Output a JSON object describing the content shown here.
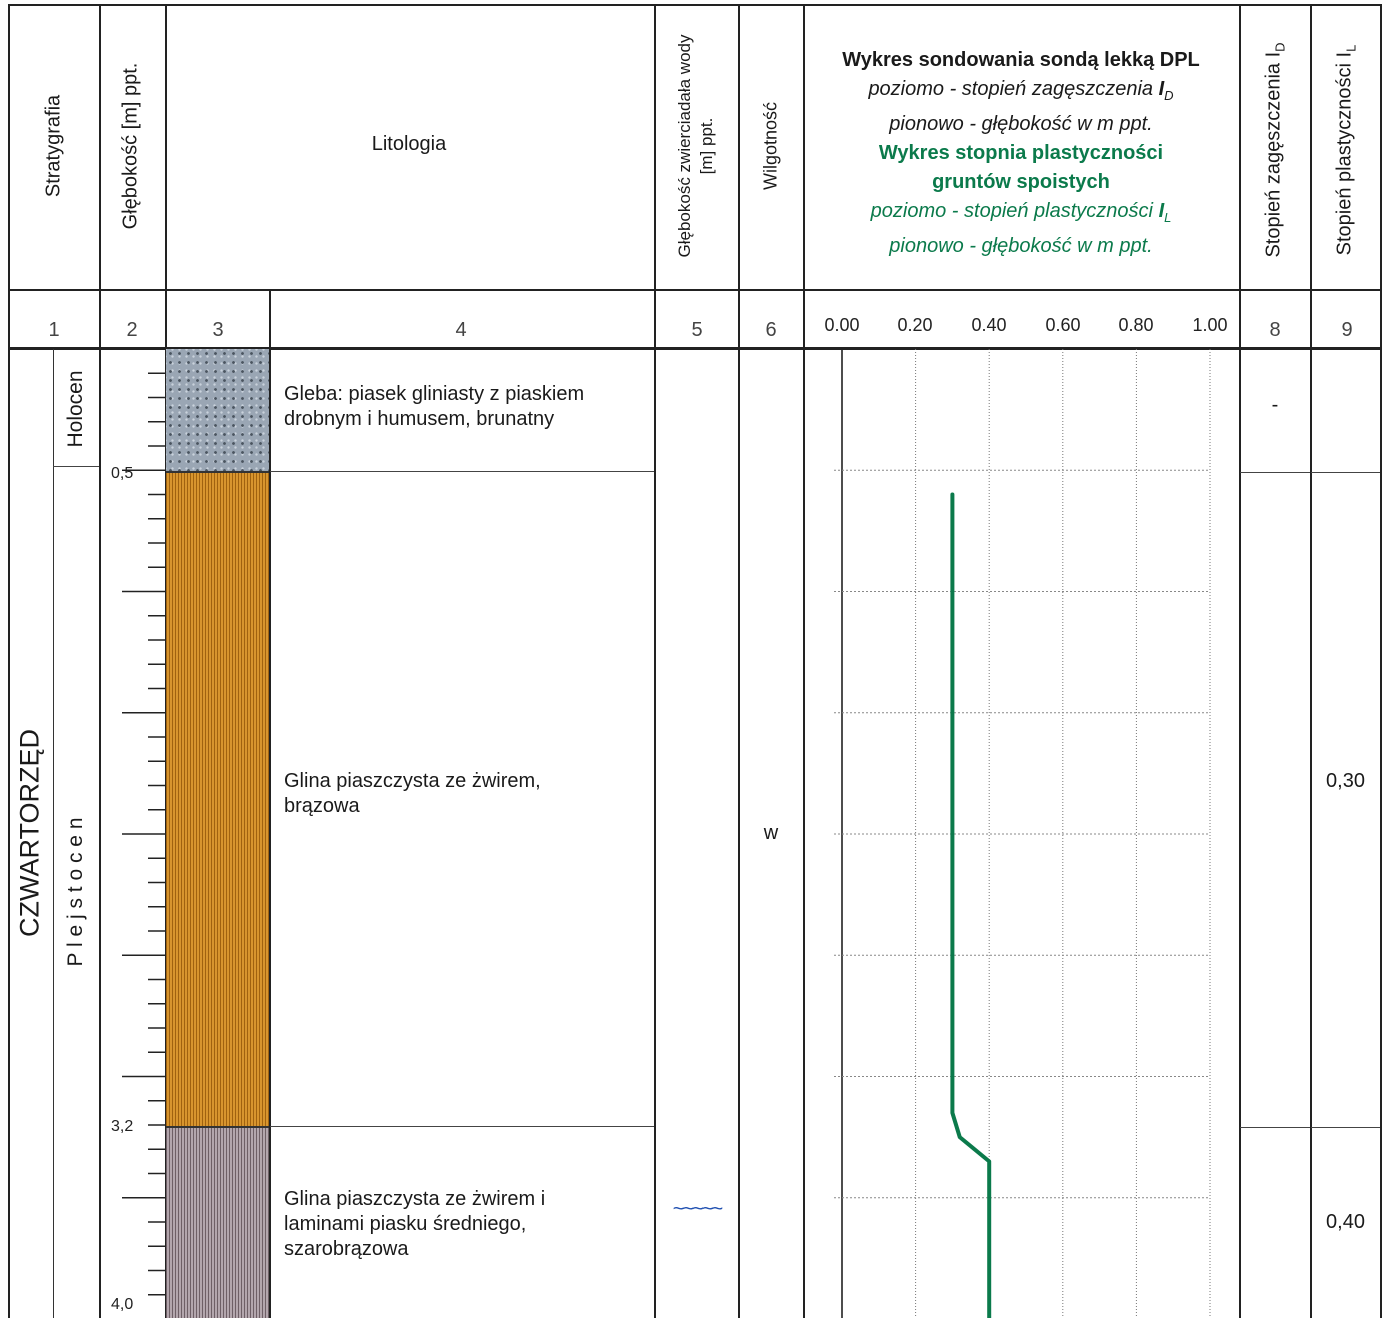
{
  "header": {
    "stratygrafia": "Stratygrafia",
    "glebokosc": "Głębokość  [m] ppt.",
    "litologia": "Litologia",
    "zwierciadlo_line1": "Głębokość zwierciadała wody",
    "zwierciadlo_line2": "[m] ppt.",
    "wilgotnosc": "Wilgotność",
    "chart_title_1": "Wykres sondowania sondą lekką DPL",
    "chart_sub_1a": "poziomo - stopień zagęszczenia ",
    "chart_sub_1a_sym": "I",
    "chart_sub_1a_sub": "D",
    "chart_sub_1b": "pionowo - głębokość w m ppt.",
    "chart_title_2a": "Wykres stopnia plastyczności",
    "chart_title_2b": "gruntów spoistych",
    "chart_sub_2a": "poziomo - stopień plastyczności ",
    "chart_sub_2a_sym": "I",
    "chart_sub_2a_sub": "L",
    "chart_sub_2b": "pionowo - głębokość w m ppt.",
    "col8_label": "Stopień zagęszczenia  I",
    "col8_sub": "D",
    "col9_label": "Stopień plastyczności  I",
    "col9_sub": "L"
  },
  "column_numbers": [
    "1",
    "2",
    "3",
    "4",
    "5",
    "6",
    "8",
    "9"
  ],
  "axis_ticks": [
    "0.00",
    "0.20",
    "0.40",
    "0.60",
    "0.80",
    "1.00"
  ],
  "stratigraphy": {
    "era": "CZWARTORZĘD",
    "holocen": "Holocen",
    "plejstocen": "P l e j s t o c e n"
  },
  "depth_labels": [
    "0,5",
    "3,2",
    "4,0"
  ],
  "layers": [
    {
      "description": "Gleba: piasek gliniasty z piaskiem drobnym i humusem, brunatny",
      "top_m": 0.0,
      "bottom_m": 0.5,
      "id": "-",
      "il": ""
    },
    {
      "description": "Glina piaszczysta ze żwirem, brązowa",
      "top_m": 0.5,
      "bottom_m": 3.2,
      "id": "",
      "il": "0,30"
    },
    {
      "description": "Glina piaszczysta ze żwirem i laminami piasku średniego, szarobrązowa",
      "top_m": 3.2,
      "bottom_m": 4.0,
      "id": "",
      "il": "0,40"
    }
  ],
  "lith_text": {
    "l1a": "Gleba: piasek gliniasty z piaskiem",
    "l1b": "drobnym i humusem, brunatny",
    "l2a": "Glina piaszczysta ze żwirem,",
    "l2b": "brązowa",
    "l3a": "Glina piaszczysta ze żwirem i",
    "l3b": "laminami piasku średniego,",
    "l3c": "szarobrązowa"
  },
  "moisture": "w",
  "water_table_symbol": "~~~~~",
  "id_value": "-",
  "il_values": [
    "0,30",
    "0,40"
  ],
  "colors": {
    "plasticity_line": "#0b7a4b",
    "water_symbol": "#1f4fb0"
  },
  "chart_data": {
    "type": "line",
    "title": "Wykres stopnia plastyczności gruntów spoistych",
    "xlabel": "stopień plastyczności IL",
    "ylabel": "głębokość w m ppt.",
    "xlim": [
      0.0,
      1.0
    ],
    "ylim": [
      0.0,
      4.0
    ],
    "grid": true,
    "series": [
      {
        "name": "IL",
        "points": [
          [
            0.3,
            0.6
          ],
          [
            0.3,
            3.15
          ],
          [
            0.32,
            3.25
          ],
          [
            0.4,
            3.35
          ],
          [
            0.4,
            4.0
          ]
        ]
      }
    ]
  }
}
